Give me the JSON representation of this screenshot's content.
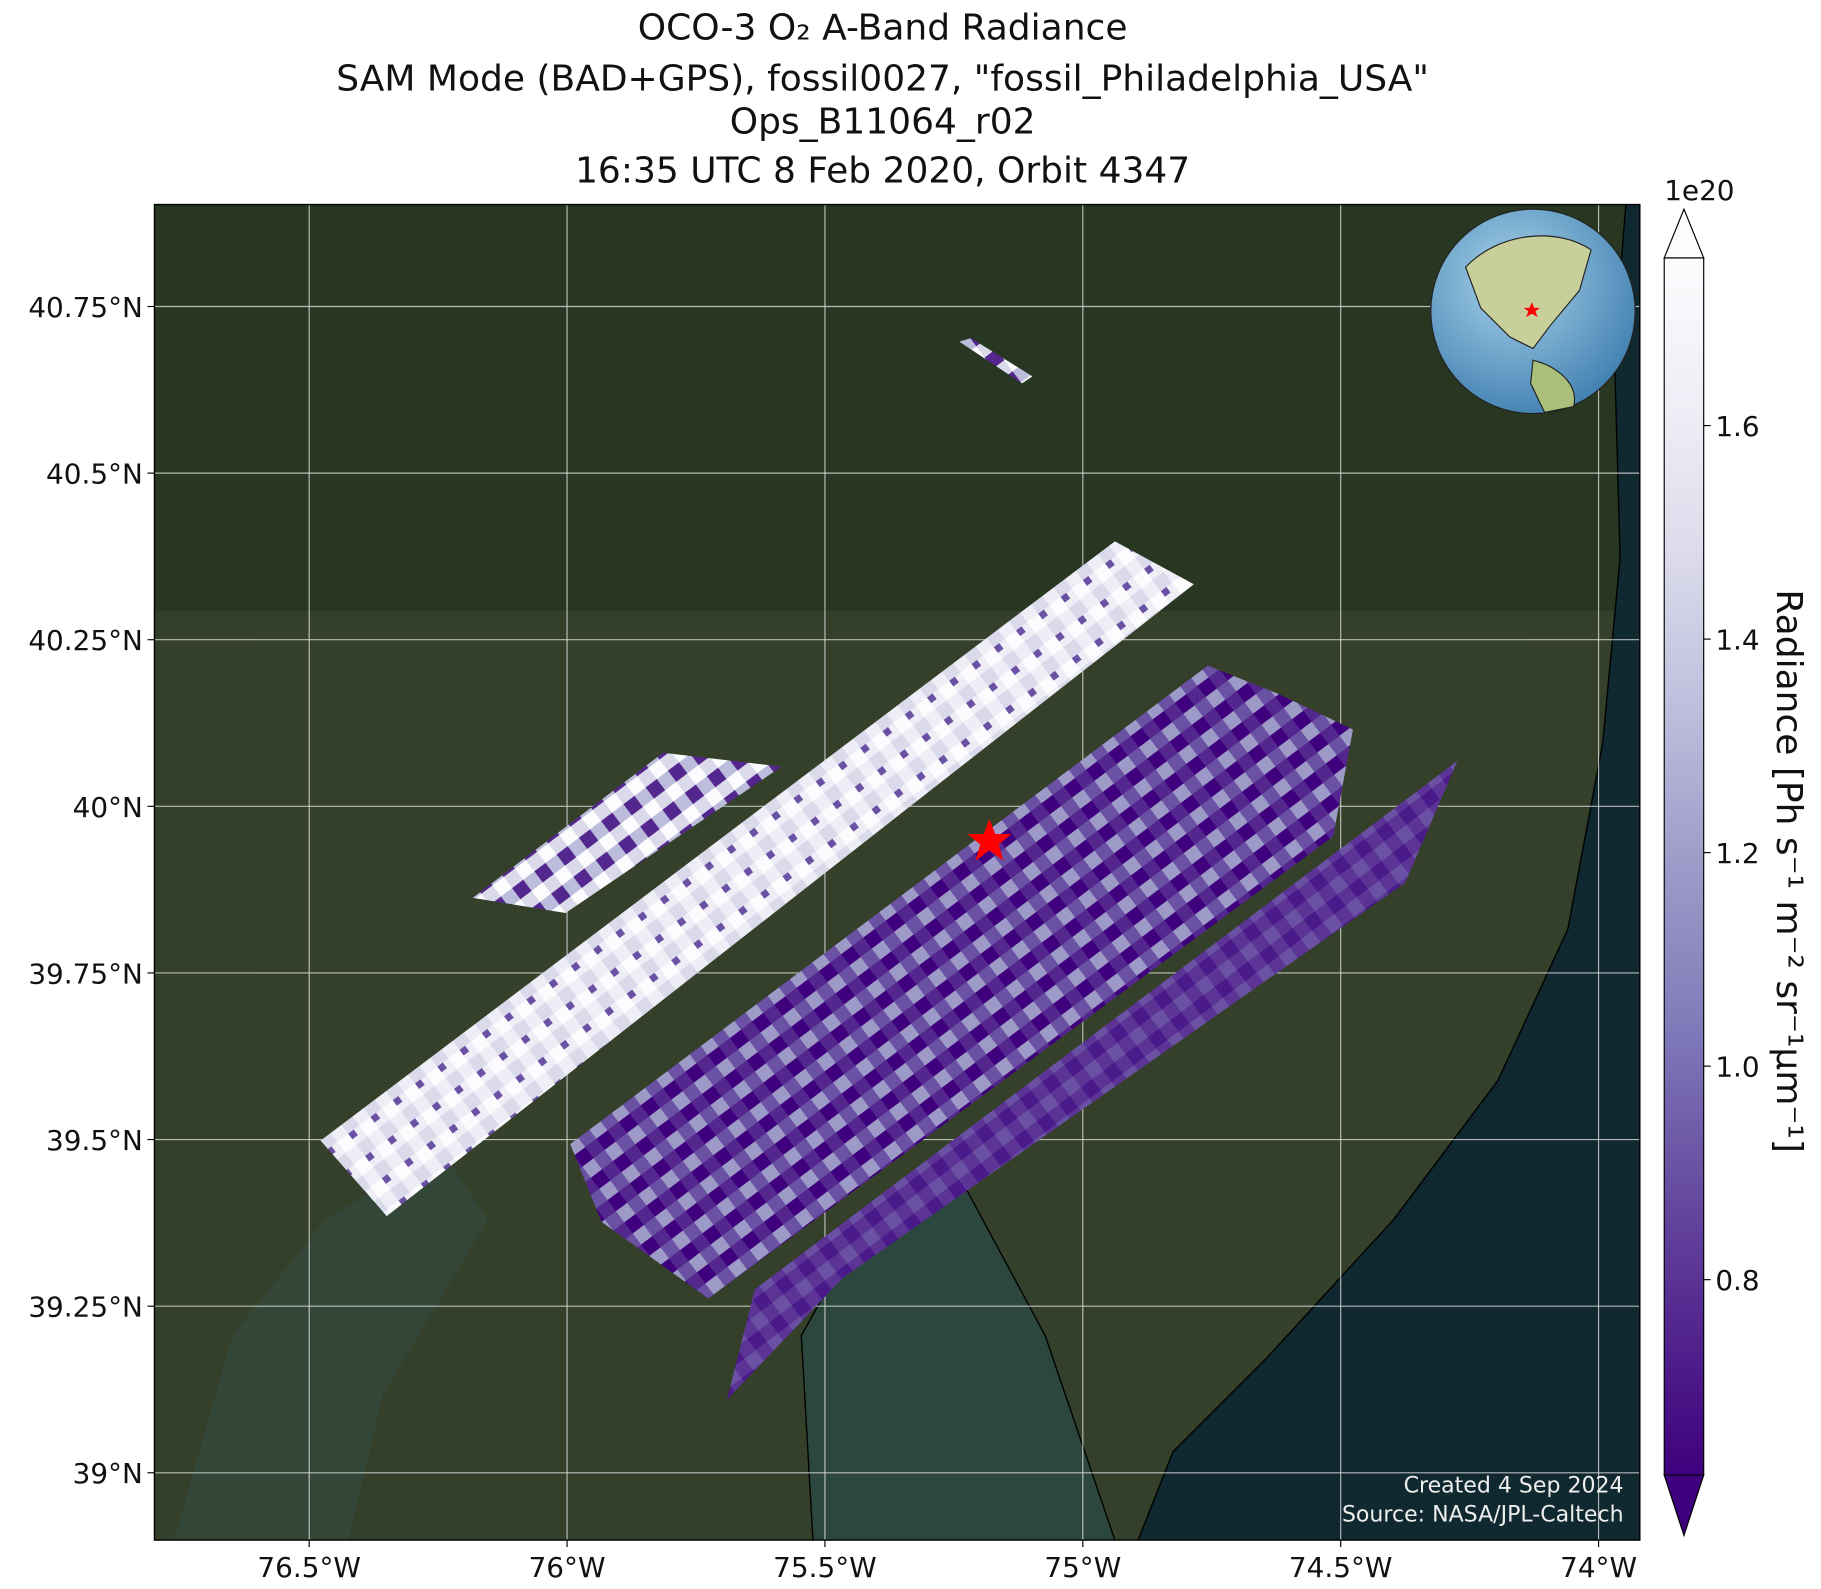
{
  "map": {
    "title": [
      "OCO-3 O₂ A-Band Radiance",
      "SAM Mode (BAD+GPS), fossil0027, \"fossil_Philadelphia_USA\"",
      "Ops_B11064_r02",
      "16:35 UTC 8 Feb 2020, Orbit 4347"
    ],
    "xlim": [
      -76.8,
      -73.92
    ],
    "ylim": [
      38.899,
      40.903
    ],
    "xticks": [
      {
        "value": -76.5,
        "label": "76.5°W"
      },
      {
        "value": -76,
        "label": "76°W"
      },
      {
        "value": -75.5,
        "label": "75.5°W"
      },
      {
        "value": -75,
        "label": "75°W"
      },
      {
        "value": -74.5,
        "label": "74.5°W"
      },
      {
        "value": -74,
        "label": "74°W"
      }
    ],
    "yticks": [
      {
        "value": 39,
        "label": "39°N"
      },
      {
        "value": 39.25,
        "label": "39.25°N"
      },
      {
        "value": 39.5,
        "label": "39.5°N"
      },
      {
        "value": 39.75,
        "label": "39.75°N"
      },
      {
        "value": 40,
        "label": "40°N"
      },
      {
        "value": 40.25,
        "label": "40.25°N"
      },
      {
        "value": 40.5,
        "label": "40.5°N"
      },
      {
        "value": 40.75,
        "label": "40.75°N"
      }
    ],
    "grid": true,
    "colorbar": {
      "label": "Radiance [Ph s⁻¹ m⁻² sr⁻¹μm⁻¹]",
      "exponent": "1e20",
      "clim": [
        0.617,
        1.757
      ],
      "ticks": [
        {
          "value": 0.8,
          "label": "0.8"
        },
        {
          "value": 1.0,
          "label": "1.0"
        },
        {
          "value": 1.2,
          "label": "1.2"
        },
        {
          "value": 1.4,
          "label": "1.4"
        },
        {
          "value": 1.6,
          "label": "1.6"
        }
      ],
      "colors": [
        "#3f007d",
        "#54278f",
        "#6a51a3",
        "#807dba",
        "#9e9ac8",
        "#bcbddc",
        "#dadaeb",
        "#efedf5",
        "#fcfbfd"
      ]
    },
    "credit": [
      "Created 4 Sep 2024",
      "Source: NASA/JPL-Caltech"
    ]
  }
}
